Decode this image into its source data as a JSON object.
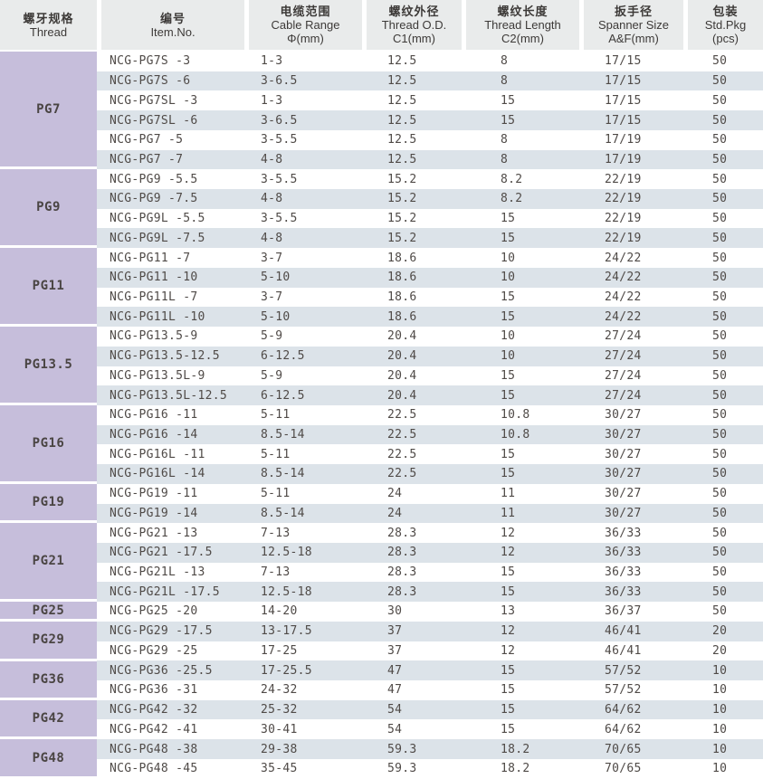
{
  "header": {
    "columns": [
      {
        "zh": "螺牙规格",
        "en": "Thread",
        "sub": ""
      },
      {
        "zh": "编号",
        "en": "Item.No.",
        "sub": ""
      },
      {
        "zh": "电缆范围",
        "en": "Cable Range",
        "sub": "Φ(mm)"
      },
      {
        "zh": "螺纹外径",
        "en": "Thread O.D.",
        "sub": "C1(mm)"
      },
      {
        "zh": "螺纹长度",
        "en": "Thread Length",
        "sub": "C2(mm)"
      },
      {
        "zh": "扳手径",
        "en": "Spanner Size",
        "sub": "A&F(mm)"
      },
      {
        "zh": "包装",
        "en": "Std.Pkg",
        "sub": "(pcs)"
      }
    ]
  },
  "colors": {
    "thread_column_bg": "#c6bedb",
    "stripe_bg": "#dce3e9",
    "header_bg": "#e9ebeb",
    "text": "#4f4a47"
  },
  "table": {
    "column_keys": [
      "item_no",
      "cable_range",
      "thread_od",
      "thread_length",
      "spanner_size",
      "std_pkg"
    ],
    "groups": [
      {
        "thread": "PG7",
        "rows": [
          [
            "NCG-PG7S -3",
            "1-3",
            "12.5",
            "8",
            "17/15",
            "50"
          ],
          [
            "NCG-PG7S -6",
            "3-6.5",
            "12.5",
            "8",
            "17/15",
            "50"
          ],
          [
            "NCG-PG7SL -3",
            "1-3",
            "12.5",
            "15",
            "17/15",
            "50"
          ],
          [
            "NCG-PG7SL -6",
            "3-6.5",
            "12.5",
            "15",
            "17/15",
            "50"
          ],
          [
            "NCG-PG7 -5",
            "3-5.5",
            "12.5",
            "8",
            "17/19",
            "50"
          ],
          [
            "NCG-PG7 -7",
            "4-8",
            "12.5",
            "8",
            "17/19",
            "50"
          ]
        ]
      },
      {
        "thread": "PG9",
        "rows": [
          [
            "NCG-PG9 -5.5",
            "3-5.5",
            "15.2",
            "8.2",
            "22/19",
            "50"
          ],
          [
            "NCG-PG9 -7.5",
            "4-8",
            "15.2",
            "8.2",
            "22/19",
            "50"
          ],
          [
            "NCG-PG9L -5.5",
            "3-5.5",
            "15.2",
            "15",
            "22/19",
            "50"
          ],
          [
            "NCG-PG9L -7.5",
            "4-8",
            "15.2",
            "15",
            "22/19",
            "50"
          ]
        ]
      },
      {
        "thread": "PG11",
        "rows": [
          [
            "NCG-PG11 -7",
            "3-7",
            "18.6",
            "10",
            "24/22",
            "50"
          ],
          [
            "NCG-PG11 -10",
            "5-10",
            "18.6",
            "10",
            "24/22",
            "50"
          ],
          [
            "NCG-PG11L -7",
            "3-7",
            "18.6",
            "15",
            "24/22",
            "50"
          ],
          [
            "NCG-PG11L -10",
            "5-10",
            "18.6",
            "15",
            "24/22",
            "50"
          ]
        ]
      },
      {
        "thread": "PG13.5",
        "rows": [
          [
            "NCG-PG13.5-9",
            "5-9",
            "20.4",
            "10",
            "27/24",
            "50"
          ],
          [
            "NCG-PG13.5-12.5",
            "6-12.5",
            "20.4",
            "10",
            "27/24",
            "50"
          ],
          [
            "NCG-PG13.5L-9",
            "5-9",
            "20.4",
            "15",
            "27/24",
            "50"
          ],
          [
            "NCG-PG13.5L-12.5",
            "6-12.5",
            "20.4",
            "15",
            "27/24",
            "50"
          ]
        ]
      },
      {
        "thread": "PG16",
        "rows": [
          [
            "NCG-PG16 -11",
            "5-11",
            "22.5",
            "10.8",
            "30/27",
            "50"
          ],
          [
            "NCG-PG16 -14",
            "8.5-14",
            "22.5",
            "10.8",
            "30/27",
            "50"
          ],
          [
            "NCG-PG16L -11",
            "5-11",
            "22.5",
            "15",
            "30/27",
            "50"
          ],
          [
            "NCG-PG16L -14",
            "8.5-14",
            "22.5",
            "15",
            "30/27",
            "50"
          ]
        ]
      },
      {
        "thread": "PG19",
        "rows": [
          [
            "NCG-PG19 -11",
            "5-11",
            "24",
            "11",
            "30/27",
            "50"
          ],
          [
            "NCG-PG19 -14",
            "8.5-14",
            "24",
            "11",
            "30/27",
            "50"
          ]
        ]
      },
      {
        "thread": "PG21",
        "rows": [
          [
            "NCG-PG21 -13",
            "7-13",
            "28.3",
            "12",
            "36/33",
            "50"
          ],
          [
            "NCG-PG21 -17.5",
            "12.5-18",
            "28.3",
            "12",
            "36/33",
            "50"
          ],
          [
            "NCG-PG21L -13",
            "7-13",
            "28.3",
            "15",
            "36/33",
            "50"
          ],
          [
            "NCG-PG21L -17.5",
            "12.5-18",
            "28.3",
            "15",
            "36/33",
            "50"
          ]
        ]
      },
      {
        "thread": "PG25",
        "rows": [
          [
            "NCG-PG25 -20",
            "14-20",
            "30",
            "13",
            "36/37",
            "50"
          ]
        ]
      },
      {
        "thread": "PG29",
        "rows": [
          [
            "NCG-PG29 -17.5",
            "13-17.5",
            "37",
            "12",
            "46/41",
            "20"
          ],
          [
            "NCG-PG29 -25",
            "17-25",
            "37",
            "12",
            "46/41",
            "20"
          ]
        ]
      },
      {
        "thread": "PG36",
        "rows": [
          [
            "NCG-PG36 -25.5",
            "17-25.5",
            "47",
            "15",
            "57/52",
            "10"
          ],
          [
            "NCG-PG36 -31",
            "24-32",
            "47",
            "15",
            "57/52",
            "10"
          ]
        ]
      },
      {
        "thread": "PG42",
        "rows": [
          [
            "NCG-PG42 -32",
            "25-32",
            "54",
            "15",
            "64/62",
            "10"
          ],
          [
            "NCG-PG42 -41",
            "30-41",
            "54",
            "15",
            "64/62",
            "10"
          ]
        ]
      },
      {
        "thread": "PG48",
        "rows": [
          [
            "NCG-PG48 -38",
            "29-38",
            "59.3",
            "18.2",
            "70/65",
            "10"
          ],
          [
            "NCG-PG48 -45",
            "35-45",
            "59.3",
            "18.2",
            "70/65",
            "10"
          ]
        ]
      }
    ]
  }
}
